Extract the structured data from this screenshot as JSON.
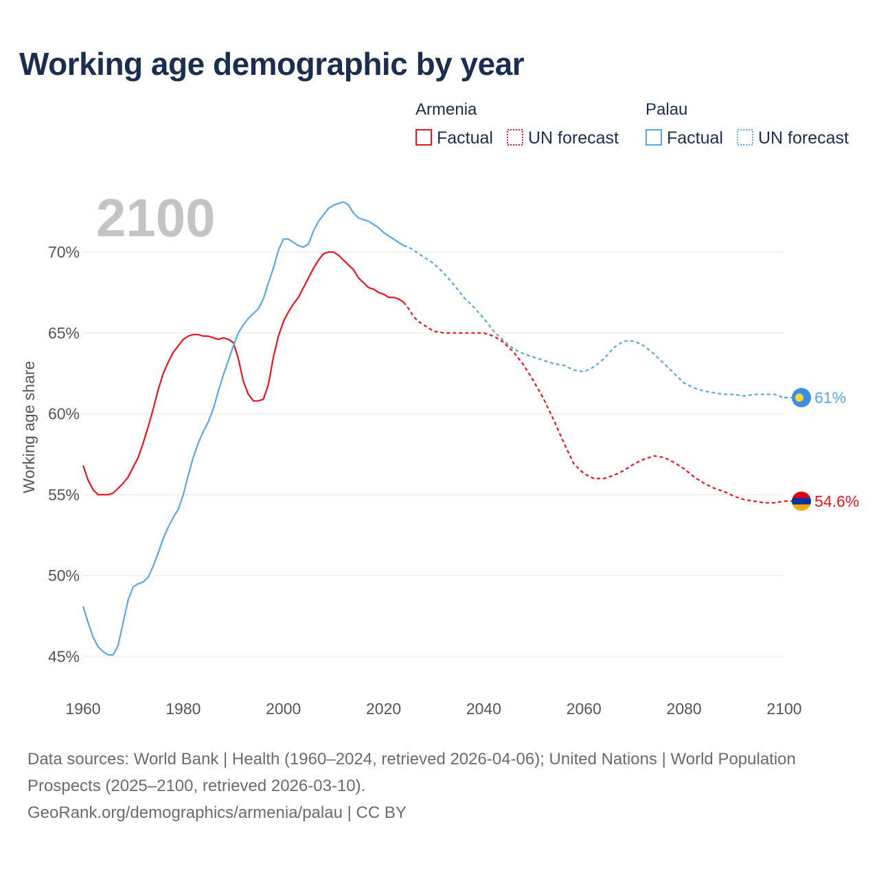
{
  "title": "Working age demographic by year",
  "year_display": "2100",
  "legend": {
    "groups": [
      {
        "country": "Armenia",
        "factual": "Factual",
        "forecast": "UN forecast",
        "color": "#e8141b"
      },
      {
        "country": "Palau",
        "factual": "Factual",
        "forecast": "UN forecast",
        "color": "#5aa6e6"
      }
    ]
  },
  "end_labels": {
    "armenia": "54.6%",
    "palau": "61%"
  },
  "footer": {
    "sources": "Data sources: World Bank | Health (1960–2024, retrieved 2026-04-06); United Nations | World Population Prospects (2025–2100, retrieved 2026-03-10).",
    "credit": "GeoRank.org/demographics/armenia/palau | CC BY"
  },
  "colors": {
    "armenia": "#e8141b",
    "palau": "#5aa6e6",
    "grid": "#e6e6e6",
    "title": "#1a2e4f"
  },
  "chart_data": {
    "type": "line",
    "title": "Working age demographic by year",
    "xlabel": "",
    "ylabel": "Working age share",
    "xlim": [
      1960,
      2100
    ],
    "ylim": [
      44,
      74
    ],
    "x_ticks": [
      1960,
      1980,
      2000,
      2020,
      2040,
      2060,
      2080,
      2100
    ],
    "x_tick_labels": [
      "1960",
      "1980",
      "2000",
      "2020",
      "2040",
      "2060",
      "2080",
      "2100"
    ],
    "y_ticks": [
      45,
      50,
      55,
      60,
      65,
      70
    ],
    "y_tick_labels": [
      "45%",
      "50%",
      "55%",
      "60%",
      "65%",
      "70%"
    ],
    "factual_until": 2024,
    "series": [
      {
        "name": "Armenia",
        "points": [
          [
            1960,
            56.8
          ],
          [
            1961,
            55.9
          ],
          [
            1962,
            55.3
          ],
          [
            1963,
            55.0
          ],
          [
            1964,
            55.0
          ],
          [
            1965,
            55.0
          ],
          [
            1966,
            55.1
          ],
          [
            1967,
            55.4
          ],
          [
            1968,
            55.7
          ],
          [
            1969,
            56.1
          ],
          [
            1970,
            56.7
          ],
          [
            1971,
            57.3
          ],
          [
            1972,
            58.2
          ],
          [
            1973,
            59.2
          ],
          [
            1974,
            60.3
          ],
          [
            1975,
            61.5
          ],
          [
            1976,
            62.5
          ],
          [
            1977,
            63.2
          ],
          [
            1978,
            63.8
          ],
          [
            1979,
            64.2
          ],
          [
            1980,
            64.6
          ],
          [
            1981,
            64.8
          ],
          [
            1982,
            64.9
          ],
          [
            1983,
            64.9
          ],
          [
            1984,
            64.8
          ],
          [
            1985,
            64.8
          ],
          [
            1986,
            64.7
          ],
          [
            1987,
            64.6
          ],
          [
            1988,
            64.7
          ],
          [
            1989,
            64.6
          ],
          [
            1990,
            64.4
          ],
          [
            1991,
            63.4
          ],
          [
            1992,
            62.0
          ],
          [
            1993,
            61.2
          ],
          [
            1994,
            60.8
          ],
          [
            1995,
            60.8
          ],
          [
            1996,
            60.9
          ],
          [
            1997,
            61.8
          ],
          [
            1998,
            63.5
          ],
          [
            1999,
            64.8
          ],
          [
            2000,
            65.7
          ],
          [
            2001,
            66.3
          ],
          [
            2002,
            66.8
          ],
          [
            2003,
            67.2
          ],
          [
            2004,
            67.8
          ],
          [
            2005,
            68.4
          ],
          [
            2006,
            69.0
          ],
          [
            2007,
            69.5
          ],
          [
            2008,
            69.9
          ],
          [
            2009,
            70.0
          ],
          [
            2010,
            70.0
          ],
          [
            2011,
            69.8
          ],
          [
            2012,
            69.5
          ],
          [
            2013,
            69.2
          ],
          [
            2014,
            68.9
          ],
          [
            2015,
            68.4
          ],
          [
            2016,
            68.1
          ],
          [
            2017,
            67.8
          ],
          [
            2018,
            67.7
          ],
          [
            2019,
            67.5
          ],
          [
            2020,
            67.4
          ],
          [
            2021,
            67.2
          ],
          [
            2022,
            67.2
          ],
          [
            2023,
            67.1
          ],
          [
            2024,
            66.9
          ],
          [
            2025,
            66.5
          ],
          [
            2026,
            66.0
          ],
          [
            2027,
            65.7
          ],
          [
            2028,
            65.5
          ],
          [
            2029,
            65.3
          ],
          [
            2030,
            65.1
          ],
          [
            2032,
            65.0
          ],
          [
            2035,
            65.0
          ],
          [
            2038,
            65.0
          ],
          [
            2040,
            65.0
          ],
          [
            2042,
            64.8
          ],
          [
            2044,
            64.4
          ],
          [
            2046,
            63.8
          ],
          [
            2048,
            63.0
          ],
          [
            2050,
            62.0
          ],
          [
            2052,
            60.9
          ],
          [
            2054,
            59.6
          ],
          [
            2056,
            58.2
          ],
          [
            2058,
            56.9
          ],
          [
            2060,
            56.3
          ],
          [
            2062,
            56.0
          ],
          [
            2064,
            56.0
          ],
          [
            2066,
            56.2
          ],
          [
            2068,
            56.5
          ],
          [
            2070,
            56.9
          ],
          [
            2072,
            57.2
          ],
          [
            2074,
            57.4
          ],
          [
            2076,
            57.3
          ],
          [
            2078,
            57.0
          ],
          [
            2080,
            56.6
          ],
          [
            2082,
            56.1
          ],
          [
            2084,
            55.7
          ],
          [
            2086,
            55.4
          ],
          [
            2088,
            55.2
          ],
          [
            2090,
            54.9
          ],
          [
            2092,
            54.7
          ],
          [
            2094,
            54.6
          ],
          [
            2096,
            54.5
          ],
          [
            2098,
            54.5
          ],
          [
            2100,
            54.6
          ]
        ]
      },
      {
        "name": "Palau",
        "points": [
          [
            1960,
            48.1
          ],
          [
            1961,
            47.1
          ],
          [
            1962,
            46.2
          ],
          [
            1963,
            45.6
          ],
          [
            1964,
            45.3
          ],
          [
            1965,
            45.1
          ],
          [
            1966,
            45.1
          ],
          [
            1967,
            45.7
          ],
          [
            1968,
            47.1
          ],
          [
            1969,
            48.5
          ],
          [
            1970,
            49.3
          ],
          [
            1971,
            49.5
          ],
          [
            1972,
            49.6
          ],
          [
            1973,
            49.9
          ],
          [
            1974,
            50.6
          ],
          [
            1975,
            51.4
          ],
          [
            1976,
            52.3
          ],
          [
            1977,
            53.0
          ],
          [
            1978,
            53.6
          ],
          [
            1979,
            54.1
          ],
          [
            1980,
            55.0
          ],
          [
            1981,
            56.2
          ],
          [
            1982,
            57.3
          ],
          [
            1983,
            58.2
          ],
          [
            1984,
            58.9
          ],
          [
            1985,
            59.5
          ],
          [
            1986,
            60.3
          ],
          [
            1987,
            61.4
          ],
          [
            1988,
            62.4
          ],
          [
            1989,
            63.3
          ],
          [
            1990,
            64.2
          ],
          [
            1991,
            65.0
          ],
          [
            1992,
            65.5
          ],
          [
            1993,
            65.9
          ],
          [
            1994,
            66.2
          ],
          [
            1995,
            66.5
          ],
          [
            1996,
            67.1
          ],
          [
            1997,
            68.1
          ],
          [
            1998,
            69.0
          ],
          [
            1999,
            70.1
          ],
          [
            2000,
            70.8
          ],
          [
            2001,
            70.8
          ],
          [
            2002,
            70.6
          ],
          [
            2003,
            70.4
          ],
          [
            2004,
            70.3
          ],
          [
            2005,
            70.5
          ],
          [
            2006,
            71.3
          ],
          [
            2007,
            71.9
          ],
          [
            2008,
            72.3
          ],
          [
            2009,
            72.7
          ],
          [
            2010,
            72.9
          ],
          [
            2011,
            73.0
          ],
          [
            2012,
            73.1
          ],
          [
            2013,
            72.9
          ],
          [
            2014,
            72.4
          ],
          [
            2015,
            72.1
          ],
          [
            2016,
            72.0
          ],
          [
            2017,
            71.9
          ],
          [
            2018,
            71.7
          ],
          [
            2019,
            71.5
          ],
          [
            2020,
            71.2
          ],
          [
            2021,
            71.0
          ],
          [
            2022,
            70.8
          ],
          [
            2023,
            70.6
          ],
          [
            2024,
            70.4
          ],
          [
            2025,
            70.3
          ],
          [
            2026,
            70.1
          ],
          [
            2027,
            69.9
          ],
          [
            2028,
            69.7
          ],
          [
            2029,
            69.5
          ],
          [
            2030,
            69.3
          ],
          [
            2032,
            68.7
          ],
          [
            2034,
            68.0
          ],
          [
            2036,
            67.2
          ],
          [
            2038,
            66.6
          ],
          [
            2040,
            65.9
          ],
          [
            2042,
            65.1
          ],
          [
            2044,
            64.5
          ],
          [
            2046,
            64.0
          ],
          [
            2048,
            63.7
          ],
          [
            2050,
            63.5
          ],
          [
            2052,
            63.3
          ],
          [
            2054,
            63.1
          ],
          [
            2056,
            63.0
          ],
          [
            2058,
            62.7
          ],
          [
            2060,
            62.6
          ],
          [
            2062,
            62.9
          ],
          [
            2064,
            63.4
          ],
          [
            2066,
            64.1
          ],
          [
            2068,
            64.5
          ],
          [
            2070,
            64.5
          ],
          [
            2072,
            64.2
          ],
          [
            2074,
            63.7
          ],
          [
            2076,
            63.1
          ],
          [
            2078,
            62.5
          ],
          [
            2080,
            61.9
          ],
          [
            2082,
            61.6
          ],
          [
            2084,
            61.4
          ],
          [
            2086,
            61.3
          ],
          [
            2088,
            61.2
          ],
          [
            2090,
            61.2
          ],
          [
            2092,
            61.1
          ],
          [
            2094,
            61.2
          ],
          [
            2096,
            61.2
          ],
          [
            2098,
            61.2
          ],
          [
            2100,
            61.0
          ]
        ]
      }
    ]
  }
}
